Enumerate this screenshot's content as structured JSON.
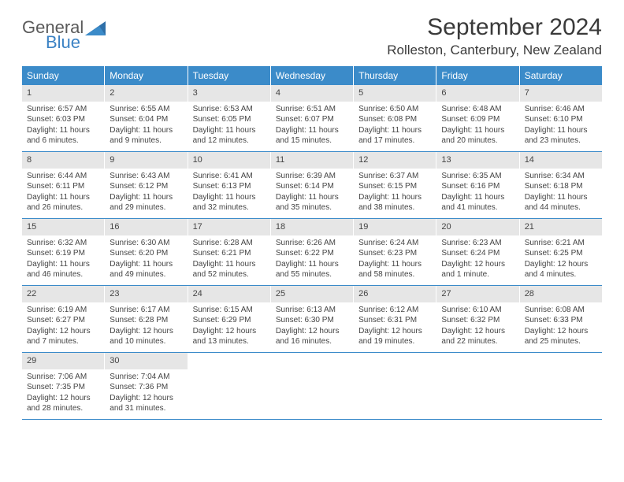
{
  "logo": {
    "general": "General",
    "blue": "Blue"
  },
  "title": "September 2024",
  "location": "Rolleston, Canterbury, New Zealand",
  "colors": {
    "header_bg": "#3b8bc9",
    "header_text": "#ffffff",
    "daynum_bg": "#e6e6e6",
    "text": "#444444",
    "rule": "#3b8bc9",
    "logo_blue": "#3b82c4"
  },
  "typography": {
    "title_fontsize": 30,
    "location_fontsize": 17,
    "weekday_fontsize": 12,
    "cell_fontsize": 10
  },
  "weekdays": [
    "Sunday",
    "Monday",
    "Tuesday",
    "Wednesday",
    "Thursday",
    "Friday",
    "Saturday"
  ],
  "weeks": [
    [
      {
        "n": "1",
        "sr": "Sunrise: 6:57 AM",
        "ss": "Sunset: 6:03 PM",
        "dl": "Daylight: 11 hours and 6 minutes."
      },
      {
        "n": "2",
        "sr": "Sunrise: 6:55 AM",
        "ss": "Sunset: 6:04 PM",
        "dl": "Daylight: 11 hours and 9 minutes."
      },
      {
        "n": "3",
        "sr": "Sunrise: 6:53 AM",
        "ss": "Sunset: 6:05 PM",
        "dl": "Daylight: 11 hours and 12 minutes."
      },
      {
        "n": "4",
        "sr": "Sunrise: 6:51 AM",
        "ss": "Sunset: 6:07 PM",
        "dl": "Daylight: 11 hours and 15 minutes."
      },
      {
        "n": "5",
        "sr": "Sunrise: 6:50 AM",
        "ss": "Sunset: 6:08 PM",
        "dl": "Daylight: 11 hours and 17 minutes."
      },
      {
        "n": "6",
        "sr": "Sunrise: 6:48 AM",
        "ss": "Sunset: 6:09 PM",
        "dl": "Daylight: 11 hours and 20 minutes."
      },
      {
        "n": "7",
        "sr": "Sunrise: 6:46 AM",
        "ss": "Sunset: 6:10 PM",
        "dl": "Daylight: 11 hours and 23 minutes."
      }
    ],
    [
      {
        "n": "8",
        "sr": "Sunrise: 6:44 AM",
        "ss": "Sunset: 6:11 PM",
        "dl": "Daylight: 11 hours and 26 minutes."
      },
      {
        "n": "9",
        "sr": "Sunrise: 6:43 AM",
        "ss": "Sunset: 6:12 PM",
        "dl": "Daylight: 11 hours and 29 minutes."
      },
      {
        "n": "10",
        "sr": "Sunrise: 6:41 AM",
        "ss": "Sunset: 6:13 PM",
        "dl": "Daylight: 11 hours and 32 minutes."
      },
      {
        "n": "11",
        "sr": "Sunrise: 6:39 AM",
        "ss": "Sunset: 6:14 PM",
        "dl": "Daylight: 11 hours and 35 minutes."
      },
      {
        "n": "12",
        "sr": "Sunrise: 6:37 AM",
        "ss": "Sunset: 6:15 PM",
        "dl": "Daylight: 11 hours and 38 minutes."
      },
      {
        "n": "13",
        "sr": "Sunrise: 6:35 AM",
        "ss": "Sunset: 6:16 PM",
        "dl": "Daylight: 11 hours and 41 minutes."
      },
      {
        "n": "14",
        "sr": "Sunrise: 6:34 AM",
        "ss": "Sunset: 6:18 PM",
        "dl": "Daylight: 11 hours and 44 minutes."
      }
    ],
    [
      {
        "n": "15",
        "sr": "Sunrise: 6:32 AM",
        "ss": "Sunset: 6:19 PM",
        "dl": "Daylight: 11 hours and 46 minutes."
      },
      {
        "n": "16",
        "sr": "Sunrise: 6:30 AM",
        "ss": "Sunset: 6:20 PM",
        "dl": "Daylight: 11 hours and 49 minutes."
      },
      {
        "n": "17",
        "sr": "Sunrise: 6:28 AM",
        "ss": "Sunset: 6:21 PM",
        "dl": "Daylight: 11 hours and 52 minutes."
      },
      {
        "n": "18",
        "sr": "Sunrise: 6:26 AM",
        "ss": "Sunset: 6:22 PM",
        "dl": "Daylight: 11 hours and 55 minutes."
      },
      {
        "n": "19",
        "sr": "Sunrise: 6:24 AM",
        "ss": "Sunset: 6:23 PM",
        "dl": "Daylight: 11 hours and 58 minutes."
      },
      {
        "n": "20",
        "sr": "Sunrise: 6:23 AM",
        "ss": "Sunset: 6:24 PM",
        "dl": "Daylight: 12 hours and 1 minute."
      },
      {
        "n": "21",
        "sr": "Sunrise: 6:21 AM",
        "ss": "Sunset: 6:25 PM",
        "dl": "Daylight: 12 hours and 4 minutes."
      }
    ],
    [
      {
        "n": "22",
        "sr": "Sunrise: 6:19 AM",
        "ss": "Sunset: 6:27 PM",
        "dl": "Daylight: 12 hours and 7 minutes."
      },
      {
        "n": "23",
        "sr": "Sunrise: 6:17 AM",
        "ss": "Sunset: 6:28 PM",
        "dl": "Daylight: 12 hours and 10 minutes."
      },
      {
        "n": "24",
        "sr": "Sunrise: 6:15 AM",
        "ss": "Sunset: 6:29 PM",
        "dl": "Daylight: 12 hours and 13 minutes."
      },
      {
        "n": "25",
        "sr": "Sunrise: 6:13 AM",
        "ss": "Sunset: 6:30 PM",
        "dl": "Daylight: 12 hours and 16 minutes."
      },
      {
        "n": "26",
        "sr": "Sunrise: 6:12 AM",
        "ss": "Sunset: 6:31 PM",
        "dl": "Daylight: 12 hours and 19 minutes."
      },
      {
        "n": "27",
        "sr": "Sunrise: 6:10 AM",
        "ss": "Sunset: 6:32 PM",
        "dl": "Daylight: 12 hours and 22 minutes."
      },
      {
        "n": "28",
        "sr": "Sunrise: 6:08 AM",
        "ss": "Sunset: 6:33 PM",
        "dl": "Daylight: 12 hours and 25 minutes."
      }
    ],
    [
      {
        "n": "29",
        "sr": "Sunrise: 7:06 AM",
        "ss": "Sunset: 7:35 PM",
        "dl": "Daylight: 12 hours and 28 minutes."
      },
      {
        "n": "30",
        "sr": "Sunrise: 7:04 AM",
        "ss": "Sunset: 7:36 PM",
        "dl": "Daylight: 12 hours and 31 minutes."
      },
      null,
      null,
      null,
      null,
      null
    ]
  ]
}
